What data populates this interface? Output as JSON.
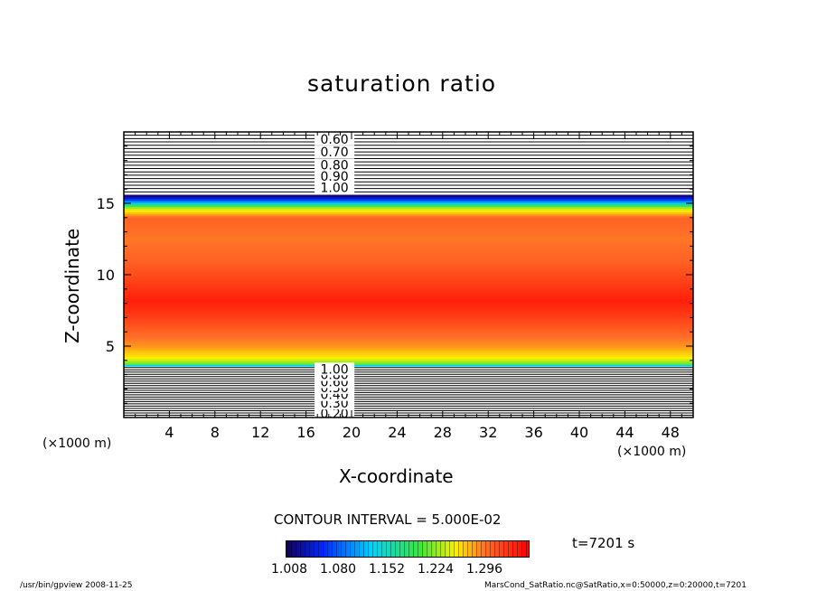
{
  "chart_data": {
    "type": "heatmap",
    "title": "saturation ratio",
    "xlabel": "X-coordinate",
    "ylabel": "Z-coordinate",
    "x_unit": "(×1000 m)",
    "xlim": [
      0,
      50
    ],
    "ylim": [
      0,
      20
    ],
    "x_ticks": [
      4,
      8,
      12,
      16,
      20,
      24,
      28,
      32,
      36,
      40,
      44,
      48
    ],
    "y_ticks": [
      5,
      10,
      15
    ],
    "contour_interval": "CONTOUR INTERVAL = 5.000E-02",
    "time": "t=7201 s",
    "colorbar": {
      "min": 1.008,
      "max": 1.368,
      "ticks": [
        "1.008",
        "1.080",
        "1.152",
        "1.224",
        "1.296"
      ]
    },
    "profile": [
      {
        "z": 3.6,
        "value": 1.1
      },
      {
        "z": 3.8,
        "value": 1.22
      },
      {
        "z": 4.2,
        "value": 1.26
      },
      {
        "z": 5.0,
        "value": 1.29
      },
      {
        "z": 6.0,
        "value": 1.31
      },
      {
        "z": 7.0,
        "value": 1.33
      },
      {
        "z": 8.2,
        "value": 1.35
      },
      {
        "z": 9.5,
        "value": 1.33
      },
      {
        "z": 11.0,
        "value": 1.31
      },
      {
        "z": 12.5,
        "value": 1.3
      },
      {
        "z": 14.0,
        "value": 1.31
      },
      {
        "z": 14.7,
        "value": 1.24
      },
      {
        "z": 15.0,
        "value": 1.15
      },
      {
        "z": 15.3,
        "value": 1.06
      },
      {
        "z": 15.6,
        "value": 1.01
      }
    ],
    "upper_contours": {
      "z_start": 15.8,
      "z_end": 20.0,
      "labeled": [
        {
          "value": "0.60",
          "z": 19.5
        },
        {
          "value": "0.70",
          "z": 18.6
        },
        {
          "value": "0.80",
          "z": 17.7
        },
        {
          "value": "0.90",
          "z": 16.9
        },
        {
          "value": "1.00",
          "z": 16.1
        }
      ]
    },
    "lower_contours": {
      "z_start": 0.0,
      "z_end": 3.5,
      "labeled": [
        {
          "value": "0.20",
          "z": 0.3
        },
        {
          "value": "0.30",
          "z": 1.0
        },
        {
          "value": "0.40",
          "z": 1.6
        },
        {
          "value": "0.50",
          "z": 2.1
        },
        {
          "value": "0.60",
          "z": 2.5
        },
        {
          "value": "0.80",
          "z": 3.0
        },
        {
          "value": "1.00",
          "z": 3.4
        }
      ]
    }
  },
  "texts": {
    "title": "saturation ratio",
    "xlabel": "X-coordinate",
    "ylabel": "Z-coordinate",
    "xunit_left": "(×1000 m)",
    "xunit_right": "(×1000 m)",
    "contour_interval": "CONTOUR INTERVAL = 5.000E-02",
    "time": "t=7201 s",
    "footer_left": "/usr/bin/gpview  2008-11-25",
    "footer_right": "MarsCond_SatRatio.nc@SatRatio,x=0:50000,z=0:20000,t=7201"
  }
}
